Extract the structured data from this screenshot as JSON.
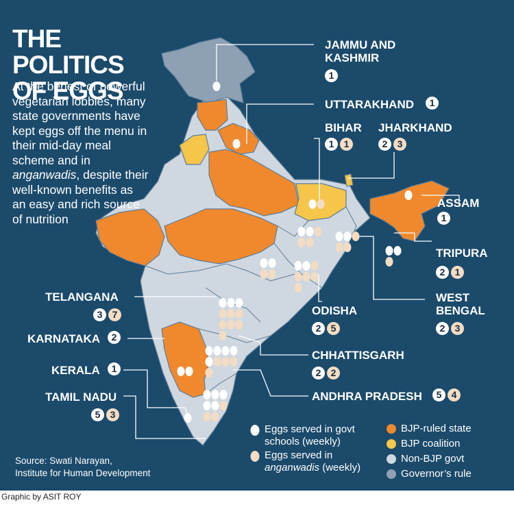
{
  "title": "THE POLITICS OF EGGS",
  "title_lines": [
    "THE POLITICS",
    "OF EGGS"
  ],
  "description_parts": {
    "before": "At the behest of powerful vegetarian lobbies, many state governments have kept eggs off the menu in their mid-day meal scheme and in ",
    "italic": "anganwadis",
    "after": ", despite their well-known benefits as an easy and rich source of nutrition"
  },
  "source_lines": [
    "Source: Swati Narayan,",
    "Institute for Human Development"
  ],
  "credit": "Graphic by ASIT ROY",
  "colors": {
    "background": "#1b4a6b",
    "bjp_ruled": "#f0892e",
    "bjp_coalition": "#f5c64a",
    "non_bjp": "#cfd7e0",
    "governors_rule": "#8ea0b3",
    "egg_school": "#ffffff",
    "egg_anganwadi": "#f3dcc4"
  },
  "legend": {
    "eggs_school_lines": [
      "Eggs served in govt",
      "schools (weekly)"
    ],
    "eggs_anganwadi_line1": "Eggs served in",
    "eggs_anganwadi_italic": "anganwadis",
    "eggs_anganwadi_tail": " (weekly)",
    "categories": [
      {
        "label": "BJP-ruled state",
        "color": "#f0892e"
      },
      {
        "label": "BJP coalition",
        "color": "#f5c64a"
      },
      {
        "label": "Non-BJP govt",
        "color": "#cfd7e0"
      },
      {
        "label": "Governor’s rule",
        "color": "#8ea0b3"
      }
    ]
  },
  "states": [
    {
      "name_lines": [
        "JAMMU AND",
        "KASHMIR"
      ],
      "school": "1",
      "anganwadi": "",
      "status": "governors_rule"
    },
    {
      "name_lines": [
        "UTTARAKHAND"
      ],
      "school": "1",
      "anganwadi": "",
      "status": "bjp_ruled"
    },
    {
      "name_lines": [
        "BIHAR"
      ],
      "school": "1",
      "anganwadi": "1",
      "status": "bjp_coalition"
    },
    {
      "name_lines": [
        "JHARKHAND"
      ],
      "school": "2",
      "anganwadi": "3",
      "status": "non_bjp"
    },
    {
      "name_lines": [
        "ASSAM"
      ],
      "school": "1",
      "anganwadi": "",
      "status": "bjp_ruled"
    },
    {
      "name_lines": [
        "TRIPURA"
      ],
      "school": "2",
      "anganwadi": "1",
      "status": "bjp_ruled"
    },
    {
      "name_lines": [
        "WEST",
        "BENGAL"
      ],
      "school": "2",
      "anganwadi": "3",
      "status": "non_bjp"
    },
    {
      "name_lines": [
        "ODISHA"
      ],
      "school": "2",
      "anganwadi": "5",
      "status": "non_bjp"
    },
    {
      "name_lines": [
        "CHHATTISGARH"
      ],
      "school": "2",
      "anganwadi": "2",
      "status": "non_bjp"
    },
    {
      "name_lines": [
        "ANDHRA PRADESH"
      ],
      "school": "5",
      "anganwadi": "4",
      "status": "non_bjp"
    },
    {
      "name_lines": [
        "TELANGANA"
      ],
      "school": "3",
      "anganwadi": "7",
      "status": "non_bjp"
    },
    {
      "name_lines": [
        "KARNATAKA"
      ],
      "school": "2",
      "anganwadi": "",
      "status": "bjp_ruled"
    },
    {
      "name_lines": [
        "KERALA"
      ],
      "school": "1",
      "anganwadi": "",
      "status": "non_bjp"
    },
    {
      "name_lines": [
        "TAMIL NADU"
      ],
      "school": "5",
      "anganwadi": "3",
      "status": "non_bjp"
    }
  ]
}
